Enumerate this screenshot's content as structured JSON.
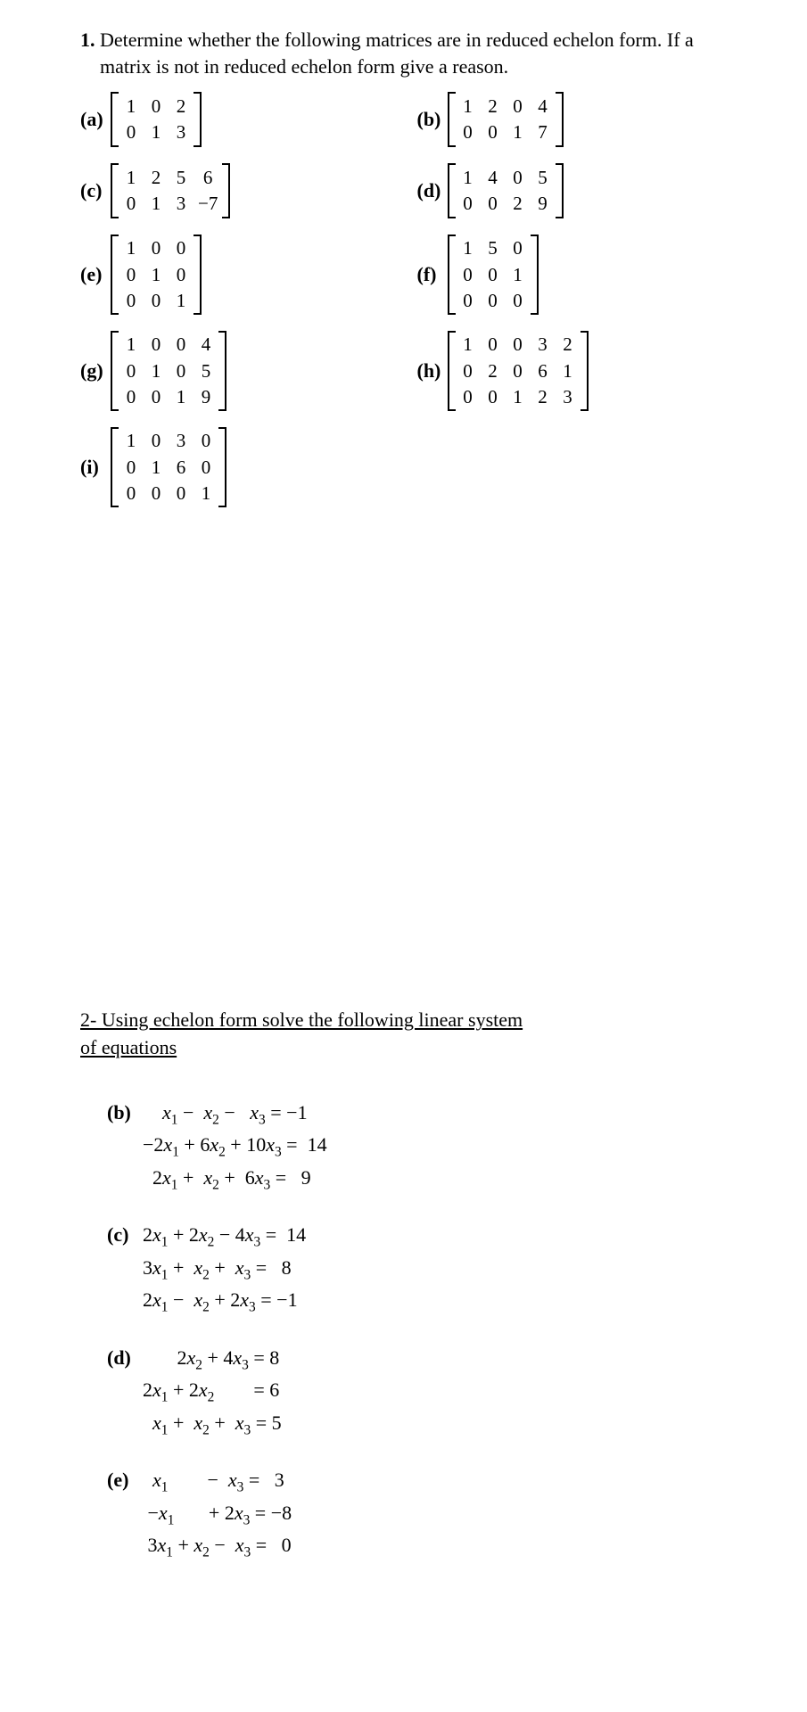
{
  "q1": {
    "number": "1.",
    "text": "Determine whether the following matrices are in reduced echelon form. If a matrix is not in reduced echelon form give a reason.",
    "parts": [
      {
        "label": "(a)",
        "rows": 2,
        "cols": 3,
        "cells": [
          "1",
          "0",
          "2",
          "0",
          "1",
          "3"
        ]
      },
      {
        "label": "(b)",
        "rows": 2,
        "cols": 4,
        "cells": [
          "1",
          "2",
          "0",
          "4",
          "0",
          "0",
          "1",
          "7"
        ]
      },
      {
        "label": "(c)",
        "rows": 2,
        "cols": 4,
        "cells": [
          "1",
          "2",
          "5",
          "6",
          "0",
          "1",
          "3",
          "−7"
        ]
      },
      {
        "label": "(d)",
        "rows": 2,
        "cols": 4,
        "cells": [
          "1",
          "4",
          "0",
          "5",
          "0",
          "0",
          "2",
          "9"
        ]
      },
      {
        "label": "(e)",
        "rows": 3,
        "cols": 3,
        "cells": [
          "1",
          "0",
          "0",
          "0",
          "1",
          "0",
          "0",
          "0",
          "1"
        ]
      },
      {
        "label": "(f)",
        "rows": 3,
        "cols": 3,
        "cells": [
          "1",
          "5",
          "0",
          "0",
          "0",
          "1",
          "0",
          "0",
          "0"
        ]
      },
      {
        "label": "(g)",
        "rows": 3,
        "cols": 4,
        "cells": [
          "1",
          "0",
          "0",
          "4",
          "0",
          "1",
          "0",
          "5",
          "0",
          "0",
          "1",
          "9"
        ]
      },
      {
        "label": "(h)",
        "rows": 3,
        "cols": 5,
        "cells": [
          "1",
          "0",
          "0",
          "3",
          "2",
          "0",
          "2",
          "0",
          "6",
          "1",
          "0",
          "0",
          "1",
          "2",
          "3"
        ]
      },
      {
        "label": "(i)",
        "rows": 3,
        "cols": 4,
        "cells": [
          "1",
          "0",
          "3",
          "0",
          "0",
          "1",
          "6",
          "0",
          "0",
          "0",
          "0",
          "1"
        ]
      }
    ]
  },
  "q2": {
    "headerLine1": "2- Using echelon form solve the following linear system",
    "headerLine2": "of equations",
    "systems": [
      {
        "label": "(b)",
        "eqs": [
          {
            "lhs": "    x₁ −  x₂ −   x₃",
            "eq": " = ",
            "rhs": "−1"
          },
          {
            "lhs": "−2x₁ + 6x₂ + 10x₃",
            "eq": " = ",
            "rhs": " 14"
          },
          {
            "lhs": "  2x₁ +  x₂ +  6x₃",
            "eq": " = ",
            "rhs": "  9"
          }
        ]
      },
      {
        "label": "(c)",
        "eqs": [
          {
            "lhs": "2x₁ + 2x₂ − 4x₃",
            "eq": " = ",
            "rhs": " 14"
          },
          {
            "lhs": "3x₁ +  x₂ +  x₃",
            "eq": " = ",
            "rhs": "  8"
          },
          {
            "lhs": "2x₁ −  x₂ + 2x₃",
            "eq": " = ",
            "rhs": "−1"
          }
        ]
      },
      {
        "label": "(d)",
        "eqs": [
          {
            "lhs": "       2x₂ + 4x₃",
            "eq": " = ",
            "rhs": "8"
          },
          {
            "lhs": "2x₁ + 2x₂       ",
            "eq": " = ",
            "rhs": "6"
          },
          {
            "lhs": "  x₁ +  x₂ +  x₃",
            "eq": " = ",
            "rhs": "5"
          }
        ]
      },
      {
        "label": "(e)",
        "eqs": [
          {
            "lhs": "  x₁        −  x₃",
            "eq": " = ",
            "rhs": "  3"
          },
          {
            "lhs": " −x₁       + 2x₃",
            "eq": " = ",
            "rhs": "−8"
          },
          {
            "lhs": " 3x₁ + x₂ −  x₃",
            "eq": " = ",
            "rhs": "  0"
          }
        ]
      }
    ]
  },
  "style": {
    "font": "Times New Roman",
    "fontSizePt": 16,
    "color": "#000000",
    "background": "#ffffff"
  }
}
